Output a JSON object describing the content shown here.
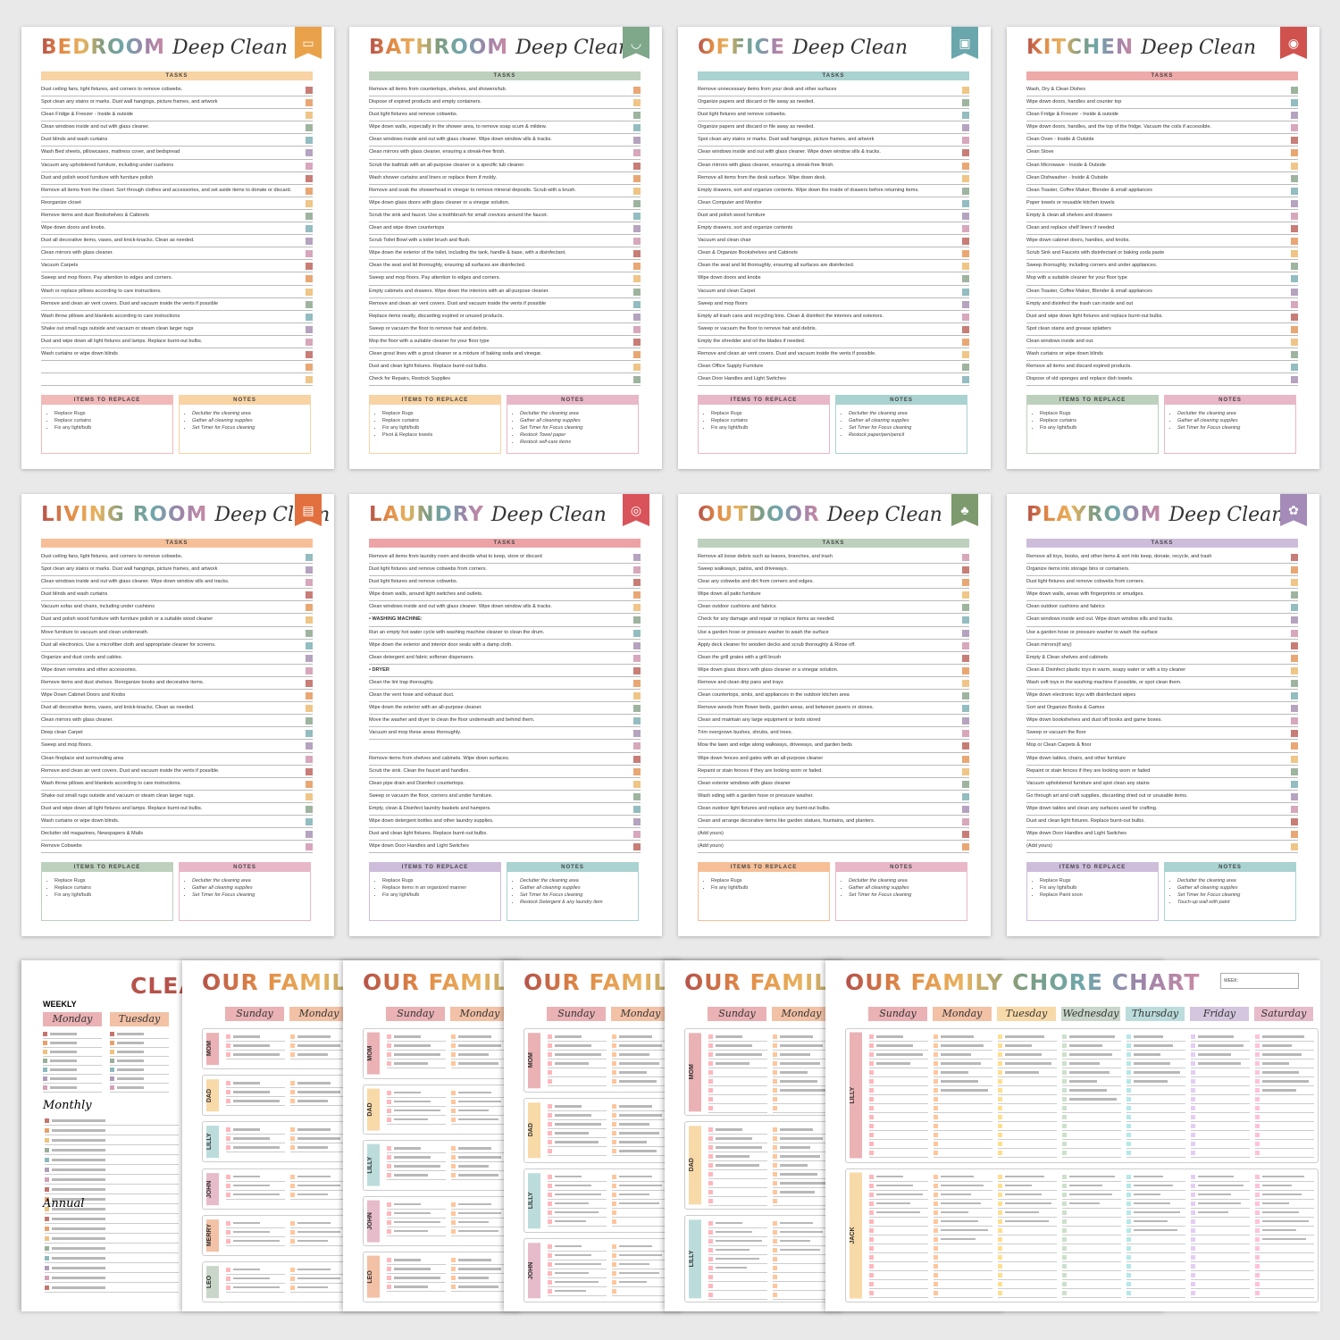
{
  "palette": {
    "red": "#b5524a",
    "orange": "#e28a45",
    "yellow": "#e9b35f",
    "green": "#7e9b7f",
    "teal": "#6fa7ab",
    "purple": "#9c84a9",
    "pink": "#c98aa5"
  },
  "cards": [
    {
      "room": "BEDROOM",
      "script": "Deep Clean",
      "icon": "bed-icon",
      "badge": "#eaa24a",
      "bar": "#f8d3a3",
      "items_color": "#f2b9b9",
      "notes_color": "#f8d3a3",
      "tasks_label": "TASKS",
      "items_label": "ITEMS TO REPLACE",
      "notes_label": "NOTES",
      "tasks": [
        "Dust ceiling fans, light fixtures, and corners to remove cobwebs.",
        "Spot clean any stains or marks. Dust wall hangings, picture frames, and artwork",
        "Clean Fridge & Freezer - Inside & outside",
        "Clean windows inside and out with glass cleaner.",
        "Dust blinds and wash curtains",
        "Wash Bed sheets, pillowcases, mattress cover, and bedspread",
        "Vacuum any upholstered furniture, including under cushions",
        "Dust and polish wood furniture with furniture polish",
        "Remove all items from the closet. Sort through clothes and accessories, and set aside items to donate or discard.",
        "Reorganize closet",
        "Remove items and dust Bookshelves & Cabinets",
        "Wipe down doors and knobs.",
        "Dust all decorative items, vases, and knick-knacks. Clean as needed.",
        "Clean mirrors with glass cleaner.",
        "Vacuum Carpets",
        "Sweep and mop floors. Pay attention to edges and corners.",
        "Wash or replace pillows according to care instructions.",
        "Remove and clean air vent covers. Dust and vacuum inside the vents if possible",
        "Wash throw pillows and blankets according to care instructions",
        "Shake out small rugs outside and vacuum or steam clean larger rugs",
        "Dust and wipe down all light fixtures and lamps. Replace burnt-out bulbs.",
        "Wash curtains or wipe down blinds",
        "",
        ""
      ],
      "items": [
        "Replace Rugs",
        "Replace curtains",
        "Fix any light/bulb"
      ],
      "notes": [
        "Declutter the cleaning area",
        "Gather all cleaning supplies",
        "Set Timer for Focus cleaning"
      ]
    },
    {
      "room": "BATHROOM",
      "script": "Deep Clean",
      "icon": "bathtub-icon",
      "badge": "#7fa88a",
      "bar": "#bdd0bd",
      "items_color": "#f8d3a3",
      "notes_color": "#e8b7c8",
      "tasks_label": "TASKS",
      "items_label": "ITEMS TO REPLACE",
      "notes_label": "NOTES",
      "tasks": [
        "Remove all items from countertops, shelves, and showers/tub.",
        "Dispose of expired products and empty containers.",
        "Dust light fixtures and remove cobwebs.",
        "Wipe down walls, especially in the shower area, to remove soap scum & mildew.",
        "Clean windows inside and out with glass cleaner. Wipe down window sills & tracks.",
        "Clean mirrors with glass cleaner, ensuring a streak-free finish.",
        "Scrub the bathtub with an all-purpose cleaner or a specific tub cleaner.",
        "Wash shower curtains and liners or replace them if moldy.",
        "Remove and soak the showerhead in vinegar to remove mineral deposits. Scrub with a brush.",
        "Wipe down glass doors with glass cleaner or a vinegar solution.",
        "Scrub the sink and faucet. Use a toothbrush for small crevices around the faucet.",
        "Clean and wipe down countertops",
        "Scrub Toilet Bowl with a toilet brush and flush.",
        "Wipe down the exterior of the toilet, including the tank, handle & base, with a disinfectant.",
        "Clean the seat and lid thoroughly, ensuring all surfaces are disinfected.",
        "Sweep and mop floors. Pay attention to edges and corners.",
        "Empty cabinets and drawers. Wipe down the interiors with an all-purpose cleaner.",
        "Remove and clean air vent covers. Dust and vacuum inside the vents if possible",
        "Replace items neatly, discarding expired or unused products.",
        "Sweep or vacuum the floor to remove hair and debris.",
        "Mop the floor with a suitable cleaner for your floor type",
        "Clean grout lines with a grout cleaner or a mixture of baking soda and vinegar.",
        "Dust and clean light fixtures. Replace burnt-out bulbs.",
        "Check for Repairs, Restock Supplies"
      ],
      "items": [
        "Replace Rugs",
        "Replace curtains",
        "Fix any light/bulb",
        "Pivot & Replace towels"
      ],
      "notes": [
        "Declutter the cleaning area",
        "Gather all cleaning supplies",
        "Set Timer for Focus cleaning",
        "Restock Towel paper",
        "Restock self-care items"
      ]
    },
    {
      "room": "OFFICE",
      "script": "Deep Clean",
      "icon": "computer-icon",
      "badge": "#6aa7ac",
      "bar": "#a9d2d0",
      "items_color": "#e8b7c8",
      "notes_color": "#a9d2d0",
      "tasks_label": "TASKS",
      "items_label": "ITEMS TO REPLACE",
      "notes_label": "NOTES",
      "tasks": [
        "Remove unnecessary items from your desk and other surfaces",
        "Organize papers and discard or file away as needed.",
        "Dust light fixtures and remove cobwebs.",
        "Organize papers and discard or file away as needed.",
        "Spot clean any stains or marks. Dust wall hangings, picture frames, and artwork",
        "Clean windows inside and out with glass cleaner. Wipe down window sills & tracks.",
        "Clean mirrors with glass cleaner, ensuring a streak-free finish.",
        "Remove all items from the desk surface. Wipe down desk.",
        "Empty drawers, sort and organize contents. Wipe down the inside of drawers before returning items.",
        "Clean Computer and Monitor",
        "Dust and polish wood furniture",
        "Empty drawers, sort and organize contents",
        "Vacuum and clean chair",
        "Clean & Organize Bookshelves and Cabinets",
        "Clean the seat and lid thoroughly, ensuring all surfaces are disinfected.",
        "Wipe down doors and knobs",
        "Vacuum and clean Carpet",
        "Sweep and mop floors",
        "Empty all trash cans and recycling bins. Clean & disinfect the interiors and exteriors.",
        "Sweep or vacuum the floor to remove hair and debris.",
        "Empty the shredder and oil the blades if needed.",
        "Remove and clean air vent covers. Dust and vacuum inside the vents if possible.",
        "Clean Office Supply Furniture",
        "Clean Door Handles and Light Switches"
      ],
      "items": [
        "Replace Rugs",
        "Replace curtains",
        "Fix any light/bulb"
      ],
      "notes": [
        "Declutter the cleaning area",
        "Gather all cleaning supplies",
        "Set Timer for Focus cleaning",
        "Restock paper/pen/pencil"
      ]
    },
    {
      "room": "KITCHEN",
      "script": "Deep Clean",
      "icon": "kitchen-icon",
      "badge": "#d0524f",
      "bar": "#eeaaa8",
      "items_color": "#bdd0bd",
      "notes_color": "#e8b7c8",
      "tasks_label": "TASKS",
      "items_label": "ITEMS TO REPLACE",
      "notes_label": "NOTES",
      "tasks": [
        "Wash, Dry & Clean Dishes",
        "Wipe down doors, handles and counter top",
        "Clean Fridge & Freezer - Inside & outside",
        "Wipe down doors, handles, and the top of the fridge. Vacuum the coils if accessible.",
        "Clean Oven - Inside & Outside",
        "Clean Stove",
        "Clean Microwave - Inside & Outside",
        "Clean Dishwasher - Inside & Outside",
        "Clean Toaster, Coffee Maker, Blender & small appliances",
        "Paper towels or reusable kitchen towels",
        "Empty & clean all shelves and drawers",
        "Clean and replace shelf liners if needed",
        "Wipe down cabinet doors, handles, and knobs.",
        "Scrub Sink and Faucets with disinfectant or baking soda paste",
        "Sweep thoroughly, including corners and under appliances.",
        "Mop with a suitable cleaner for your floor type",
        "Clean Toaster, Coffee Maker, Blender & small appliances",
        "Empty and disinfect the trash can inside and out",
        "Dust and wipe down light fixtures and replace burnt-out bulbs.",
        "Spot clean stains and grease splatters",
        "Clean windows inside and out.",
        "Wash curtains or wipe down blinds",
        "Remove all items and discard expired products.",
        "Dispose of old sponges and replace dish towels."
      ],
      "items": [
        "Replace Rugs",
        "Replace curtains",
        "Fix any light/bulb"
      ],
      "notes": [
        "Declutter the cleaning area",
        "Gather all cleaning supplies",
        "Set Timer for Focus cleaning"
      ]
    },
    {
      "room": "LIVING ROOM",
      "script": "Deep Clean",
      "icon": "tv-icon",
      "badge": "#e2703f",
      "bar": "#f6bf98",
      "items_color": "#bdd0bd",
      "notes_color": "#e8b7c8",
      "tasks_label": "TASKS",
      "items_label": "ITEMS TO REPLACE",
      "notes_label": "NOTES",
      "tasks": [
        "Dust ceiling fans, light fixtures, and corners to remove cobwebs.",
        "Spot clean any stains or marks. Dust wall hangings, picture frames, and artwork",
        "Clean windows inside and out with glass cleaner. Wipe down window sills and tracks.",
        "Dust blinds and wash curtains",
        "Vacuum sofas and chairs, including under cushions",
        "Dust and polish wood furniture with furniture polish or a suitable wood cleaner",
        "Move furniture to vacuum and clean underneath.",
        "Dust all electronics. Use a microfiber cloth and appropriate cleaner for screens.",
        "Organize and dust cords and cables.",
        "Wipe down remotes and other accessories.",
        "Remove items and dust shelves. Reorganize books and decorative items.",
        "Wipe Down Cabinet Doors and Knobs",
        "Dust all decorative items, vases, and knick-knacks. Clean as needed.",
        "Clean mirrors with glass cleaner.",
        "Deep clean Carpet",
        "Sweep and mop floors.",
        "Clean fireplace and surrounding area",
        "Remove and clean air vent covers. Dust and vacuum inside the vents if possible.",
        "Wash throw pillows and blankets according to care instructions.",
        "Shake out small rugs outside and vacuum or steam clean larger rugs.",
        "Dust and wipe down all light fixtures and lamps. Replace burnt-out bulbs.",
        "Wash curtains or wipe down blinds.",
        "Declutter old magazines, Newspapers & Mails",
        "Remove Cobwebs"
      ],
      "items": [
        "Replace Rugs",
        "Replace curtains",
        "Fix any light/bulb"
      ],
      "notes": [
        "Declutter the cleaning area",
        "Gather all cleaning supplies",
        "Set Timer for Focus cleaning"
      ]
    },
    {
      "room": "LAUNDRY",
      "script": "Deep Clean",
      "icon": "washing-machine-icon",
      "badge": "#d9545a",
      "bar": "#eda3a6",
      "items_color": "#cdbddb",
      "notes_color": "#a9d2d0",
      "tasks_label": "TASKS",
      "items_label": "ITEMS TO REPLACE",
      "notes_label": "NOTES",
      "tasks": [
        "Remove all items from laundry room and decide what to keep, store or discard",
        "Dust light fixtures and remove cobwebs from corners.",
        "Dust light fixtures and remove cobwebs.",
        "Wipe down walls, around light switches and outlets.",
        "Clean windows inside and out with glass cleaner. Wipe down window sills & tracks.",
        "• WASHING MACHINE:",
        "Run an empty hot water cycle with washing machine cleaner to clean the drum.",
        "Wipe down the exterior and interior door seals with a damp cloth.",
        "Clean detergent and fabric softener dispensers.",
        "• DRYER",
        "Clean the lint trap thoroughly.",
        "Clean the vent hose and exhaust duct.",
        "Wipe down the exterior with an all-purpose cleaner.",
        "Move the washer and dryer to clean the floor underneath and behind them.",
        "Vacuum and mop these areas thoroughly.",
        "",
        "Remove items from shelves and cabinets. Wipe down surfaces.",
        "Scrub the sink. Clean the faucet and handles.",
        "Clean pipe drain and Disinfect countertops.",
        "Sweep or vacuum the floor, corners and under furniture.",
        "Empty, clean & Disinfect laundry baskets and hampers.",
        "Wipe down detergent bottles and other laundry supplies.",
        "Dust and clean light fixtures. Replace burnt-out bulbs.",
        "Wipe down Door Handles and Light Switches"
      ],
      "items": [
        "Replace Rugs",
        "Replace items in an organized manner",
        "Fix any light/bulb"
      ],
      "notes": [
        "Declutter the cleaning area",
        "Gather all cleaning supplies",
        "Set Timer for Focus cleaning",
        "Restock Detergent & any laundry item"
      ]
    },
    {
      "room": "OUTDOOR",
      "script": "Deep Clean",
      "icon": "trees-icon",
      "badge": "#7d9a6e",
      "bar": "#bdd0bd",
      "items_color": "#f6bf98",
      "notes_color": "#e8b7c8",
      "tasks_label": "TASKS",
      "items_label": "ITEMS TO REPLACE",
      "notes_label": "NOTES",
      "tasks": [
        "Remove all loose debris such as leaves, branches, and trash",
        "Sweep walkways, patios, and driveways.",
        "Clear any cobwebs and dirt from corners and edges.",
        "Wipe down all patio furniture",
        "Clean outdoor cushions and fabrics",
        "Check for any damage and repair or replace items as needed.",
        "Use a garden hose or pressure washer to wash the surface",
        "Apply deck cleaner for wooden decks and scrub thoroughly & Rinse off.",
        "Clean the grill grates with a grill brush",
        "Wipe down glass doors with glass cleaner or a vinegar solution.",
        "Remove and clean drip pans and trays",
        "Clean countertops, sinks, and appliances in the outdoor kitchen area",
        "Remove weeds from flower beds, garden areas, and between pavers or stones.",
        "Clean and maintain any large equipment or tools stored",
        "Trim overgrown bushes, shrubs, and trees.",
        "Mow the lawn and edge along walkways, driveways, and garden beds",
        "Wipe down fences and gates with an all-purpose cleaner",
        "Repaint or stain fences if they are looking worn or faded.",
        "Clean exterior windows with glass cleaner",
        "Wash siding with a garden hose or pressure washer.",
        "Clean outdoor light fixtures and replace any burnt-out bulbs.",
        "Clean and arrange decorative items like garden statues, fountains, and planters.",
        "(Add yours)",
        "(Add yours)"
      ],
      "items": [
        "Replace Rugs",
        "Fix any light/bulb"
      ],
      "notes": [
        "Declutter the cleaning area",
        "Gather all cleaning supplies",
        "Set Timer for Focus cleaning"
      ]
    },
    {
      "room": "PLAYROOM",
      "script": "Deep Clean",
      "icon": "toy-icon",
      "badge": "#a48bb8",
      "bar": "#cdbddb",
      "items_color": "#cdbddb",
      "notes_color": "#a9d2d0",
      "tasks_label": "TASKS",
      "items_label": "ITEMS TO REPLACE",
      "notes_label": "NOTES",
      "tasks": [
        "Remove all toys, books, and other items & sort into keep, donate, recycle, and trash",
        "Organize items into storage bins or containers.",
        "Dust light fixtures and remove cobwebs from corners.",
        "Wipe down walls, areas with fingerprints or smudges.",
        "Clean outdoor cushions and fabrics",
        "Clean windows inside and out. Wipe down window sills and tracks.",
        "Use a garden hose or pressure washer to wash the surface",
        "Clean mirrors(if any)",
        "Empty & Clean shelves and cabinets",
        "Clean & Disinfect plastic toys in warm, soapy water or with a toy cleaner",
        "Wash soft toys in the washing machine if possible, or spot clean them.",
        "Wipe down electronic toys with disinfectant wipes",
        "Sort and Organize Books & Games",
        "Wipe down bookshelves and dust off books and game boxes.",
        "Sweep or vacuum the floor",
        "Mop or Clean Carpets & floor",
        "Wipe down tables, chairs, and other furniture",
        "Repaint or stain fences if they are looking worn or faded",
        "Vacuum upholstered furniture and spot clean any stains",
        "Go through art and craft supplies, discarding dried out or unusable items.",
        "Wipe down tables and clean any surfaces used for crafting.",
        "Dust and clean light fixtures. Replace burnt-out bulbs.",
        "Wipe down Door Handles and Light Switches",
        "(Add yours)"
      ],
      "items": [
        "Replace Rugs",
        "Fix any light/bulb",
        "Replace Paint soon"
      ],
      "notes": [
        "Declutter the cleaning area",
        "Gather all cleaning supplies",
        "Set Timer for Focus cleaning",
        "Touch-up wall with paint"
      ]
    }
  ],
  "cleaning_sheet": {
    "title": "CLEA",
    "weekly": "WEEKLY",
    "days": [
      "Monday",
      "Tuesday"
    ],
    "monthly": "Monthly",
    "annual": "Annual"
  },
  "chore_chart": {
    "title": "OUR FAMILY CHORE CHART",
    "week_label": "WEEK:",
    "days": [
      "Sunday",
      "Monday",
      "Tuesday",
      "Wednesday",
      "Thursday",
      "Friday",
      "Saturday"
    ],
    "sheets": [
      [
        "MOM",
        "DAD",
        "LILLY",
        "JOHN",
        "MERRY",
        "LEO"
      ],
      [
        "MOM",
        "DAD",
        "LILLY",
        "JOHN",
        "LEO"
      ],
      [
        "MOM",
        "DAD",
        "LILLY",
        "JOHN"
      ],
      [
        "MOM",
        "DAD",
        "LILLY"
      ],
      [
        "LILLY",
        "JACK"
      ]
    ]
  },
  "day_colors": [
    "#eab2b5",
    "#f2c1a6",
    "#f8d9a8",
    "#c9d6c9",
    "#bcdcdc",
    "#d4c6df",
    "#e6bccb"
  ]
}
